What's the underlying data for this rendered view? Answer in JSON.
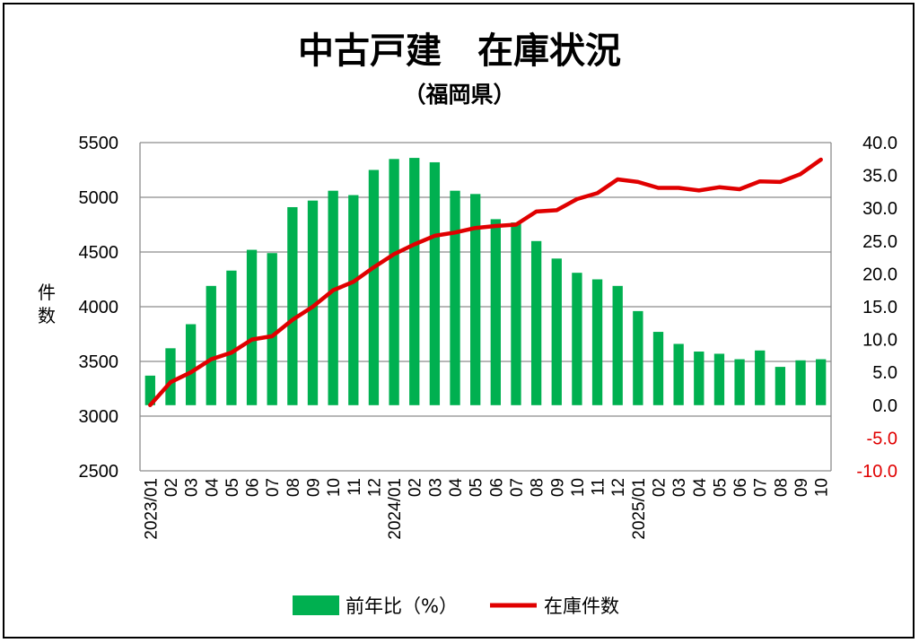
{
  "chart_data": {
    "type": "bar+line",
    "title": "中古戸建　在庫状況",
    "subtitle": "（福岡県）",
    "ylabel": "件数",
    "categories": [
      "2023/01",
      "02",
      "03",
      "04",
      "05",
      "06",
      "07",
      "08",
      "09",
      "10",
      "11",
      "12",
      "2024/01",
      "02",
      "03",
      "04",
      "05",
      "06",
      "07",
      "08",
      "09",
      "10",
      "11",
      "12",
      "2025/01",
      "02",
      "03",
      "04",
      "05",
      "06",
      "07",
      "08",
      "09",
      "10"
    ],
    "y_left": {
      "min": 2500,
      "max": 5500,
      "ticks": [
        "5500",
        "5000",
        "4500",
        "4000",
        "3500",
        "3000",
        "2500"
      ]
    },
    "y_right": {
      "min": -10,
      "max": 40,
      "ticks": [
        "40.0",
        "35.0",
        "30.0",
        "25.0",
        "20.0",
        "15.0",
        "10.0",
        "5.0",
        "0.0",
        "-5.0",
        "-10.0"
      ]
    },
    "series": [
      {
        "name": "前年比（%）",
        "type": "bar",
        "axis": "left",
        "color": "#00b050",
        "values": [
          3370,
          3620,
          3840,
          4190,
          4330,
          4520,
          4490,
          4910,
          4970,
          5060,
          5020,
          5250,
          5350,
          5360,
          5320,
          5060,
          5030,
          4800,
          4770,
          4600,
          4440,
          4310,
          4250,
          4190,
          3960,
          3770,
          3660,
          3590,
          3570,
          3520,
          3600,
          3450,
          3510,
          3520
        ]
      },
      {
        "name": "在庫件数",
        "type": "line",
        "axis": "right",
        "color": "#e00000",
        "values": [
          0.0,
          3.5,
          5.0,
          7.0,
          8.0,
          10.0,
          10.5,
          13.0,
          15.0,
          17.5,
          18.8,
          21.0,
          23.0,
          24.5,
          25.8,
          26.3,
          27.0,
          27.3,
          27.5,
          29.5,
          29.7,
          31.4,
          32.3,
          34.4,
          34.0,
          33.1,
          33.1,
          32.7,
          33.2,
          32.9,
          34.1,
          34.0,
          35.2,
          37.4
        ]
      }
    ],
    "legend_position": "bottom",
    "grid": true
  }
}
